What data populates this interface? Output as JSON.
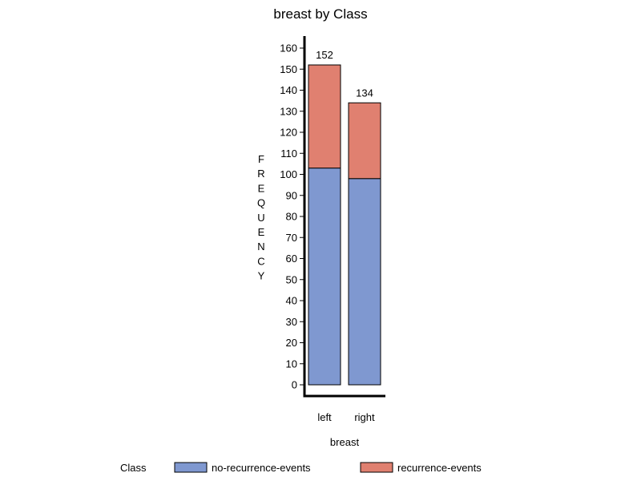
{
  "chart_data": {
    "type": "bar",
    "stacked": true,
    "title": "breast by Class",
    "xlabel": "breast",
    "ylabel": "FREQUENCY",
    "categories": [
      "left",
      "right"
    ],
    "series": [
      {
        "name": "no-recurrence-events",
        "values": [
          103,
          98
        ],
        "color": "#7f98d0"
      },
      {
        "name": "recurrence-events",
        "values": [
          49,
          36
        ],
        "color": "#e08070"
      }
    ],
    "totals": [
      152,
      134
    ],
    "ylim": [
      0,
      160
    ],
    "yticks": [
      0,
      10,
      20,
      30,
      40,
      50,
      60,
      70,
      80,
      90,
      100,
      110,
      120,
      130,
      140,
      150,
      160
    ],
    "grid": false,
    "legend": {
      "title": "Class",
      "placement": "bottom",
      "items": [
        "no-recurrence-events",
        "recurrence-events"
      ]
    }
  }
}
